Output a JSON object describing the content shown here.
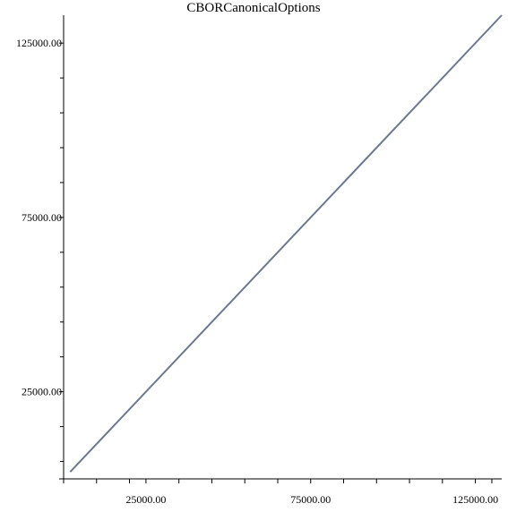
{
  "chart_data": {
    "type": "line",
    "title": "CBORCanonicalOptions",
    "xlabel": "",
    "ylabel": "",
    "xlim": [
      0,
      133000
    ],
    "ylim": [
      0,
      133000
    ],
    "x_ticks_major": [
      25000,
      75000,
      125000
    ],
    "x_tick_labels": [
      "25000.00",
      "75000.00",
      "125000.00"
    ],
    "x_ticks_minor": [
      10000,
      20000,
      35000,
      45000,
      55000,
      65000,
      85000,
      95000,
      105000,
      115000,
      130000
    ],
    "y_ticks_major": [
      25000,
      75000,
      125000
    ],
    "y_tick_labels": [
      "25000.00",
      "75000.00",
      "125000.00"
    ],
    "y_ticks_minor": [
      5000,
      15000,
      35000,
      45000,
      55000,
      65000,
      85000,
      95000,
      105000,
      115000
    ],
    "grid": false,
    "legend": "none",
    "series": [
      {
        "color": "#6b7890",
        "x": [
          2000,
          133000
        ],
        "y": [
          2000,
          133000
        ]
      }
    ]
  }
}
